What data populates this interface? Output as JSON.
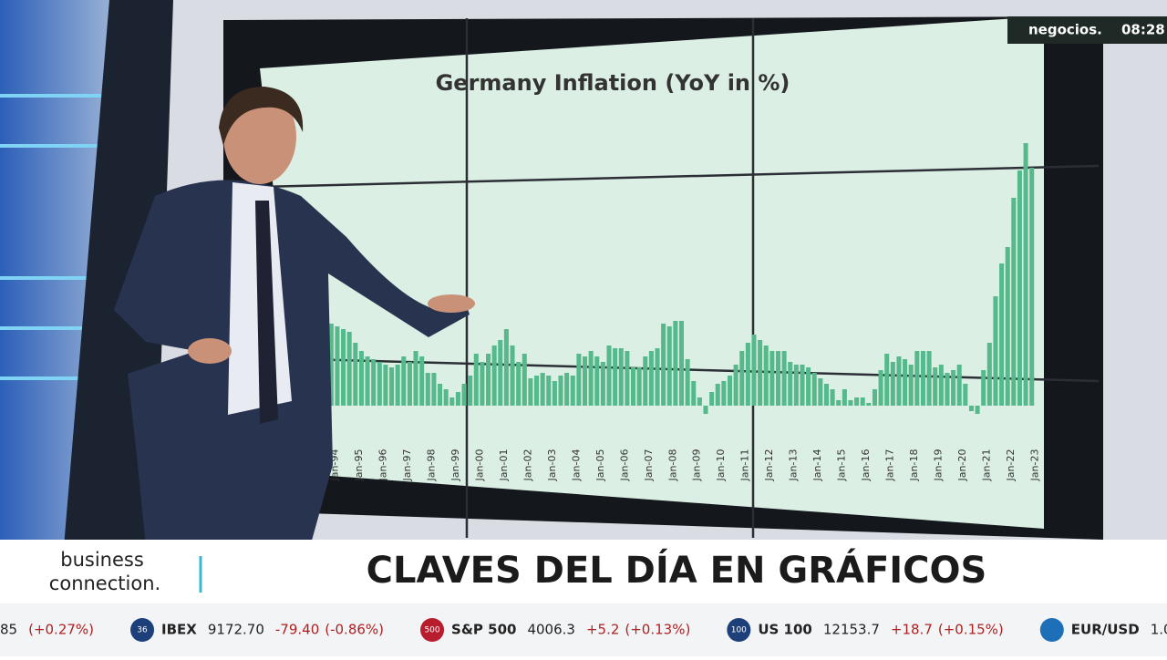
{
  "channel": {
    "name": "negocios.",
    "time": "08:28"
  },
  "chart_data": {
    "type": "bar",
    "title": "Germany Inflation (YoY in %)",
    "color": "#56b98c",
    "categories": [
      "Jan-94",
      null,
      null,
      null,
      "Jan-95",
      null,
      null,
      null,
      "Jan-96",
      null,
      null,
      null,
      "Jan-97",
      null,
      null,
      null,
      "Jan-98",
      null,
      null,
      null,
      "Jan-99",
      null,
      null,
      null,
      "Jan-00",
      null,
      null,
      null,
      "Jan-01",
      null,
      null,
      null,
      "Jan-02",
      null,
      null,
      null,
      "Jan-03",
      null,
      null,
      null,
      "Jan-04",
      null,
      null,
      null,
      "Jan-05",
      null,
      null,
      null,
      "Jan-06",
      null,
      null,
      null,
      "Jan-07",
      null,
      null,
      null,
      "Jan-08",
      null,
      null,
      null,
      "Jan-09",
      null,
      null,
      null,
      "Jan-10",
      null,
      null,
      null,
      "Jan-11",
      null,
      null,
      null,
      "Jan-12",
      null,
      null,
      null,
      "Jan-13",
      null,
      null,
      null,
      "Jan-14",
      null,
      null,
      null,
      "Jan-15",
      null,
      null,
      null,
      "Jan-16",
      null,
      null,
      null,
      "Jan-17",
      null,
      null,
      null,
      "Jan-18",
      null,
      null,
      null,
      "Jan-19",
      null,
      null,
      null,
      "Jan-20",
      null,
      null,
      null,
      "Jan-21",
      null,
      null,
      null,
      "Jan-22",
      null,
      null,
      null,
      "Jan-23"
    ],
    "values": [
      3.0,
      2.9,
      2.8,
      2.7,
      2.3,
      2.0,
      1.8,
      1.7,
      1.6,
      1.5,
      1.4,
      1.5,
      1.8,
      1.6,
      2.0,
      1.8,
      1.2,
      1.2,
      0.8,
      0.6,
      0.3,
      0.5,
      0.8,
      1.1,
      1.9,
      1.6,
      1.9,
      2.2,
      2.4,
      2.8,
      2.2,
      1.6,
      1.9,
      1.0,
      1.1,
      1.2,
      1.1,
      0.9,
      1.1,
      1.2,
      1.1,
      1.9,
      1.8,
      2.0,
      1.8,
      1.6,
      2.2,
      2.1,
      2.1,
      2.0,
      1.4,
      1.4,
      1.8,
      2.0,
      2.1,
      3.0,
      2.9,
      3.1,
      3.1,
      1.7,
      0.9,
      0.3,
      -0.3,
      0.5,
      0.8,
      0.9,
      1.1,
      1.5,
      2.0,
      2.3,
      2.6,
      2.4,
      2.2,
      2.0,
      2.0,
      2.0,
      1.6,
      1.5,
      1.5,
      1.4,
      1.2,
      1.0,
      0.8,
      0.6,
      0.2,
      0.6,
      0.2,
      0.3,
      0.3,
      0.1,
      0.6,
      1.3,
      1.9,
      1.6,
      1.8,
      1.7,
      1.5,
      2.0,
      2.0,
      2.0,
      1.4,
      1.5,
      1.2,
      1.3,
      1.5,
      0.8,
      -0.2,
      -0.3,
      1.3,
      2.3,
      4.0,
      5.2,
      5.8,
      7.6,
      8.6,
      9.6,
      8.7
    ],
    "ylim": [
      -1,
      10
    ]
  },
  "lower_third": {
    "brand_line1": "business",
    "brand_line2": "connection.",
    "headline": "CLAVES DEL DÍA EN GRÁFICOS"
  },
  "ticker": [
    {
      "badge": null,
      "name": null,
      "price": "85",
      "change": null,
      "pct": "(+0.27%)"
    },
    {
      "badge": "36",
      "name": "IBEX",
      "price": "9172.70",
      "change": "-79.40",
      "pct": "(-0.86%)"
    },
    {
      "badge": "500",
      "name": "S&P 500",
      "price": "4006.3",
      "change": "+5.2",
      "pct": "(+0.13%)"
    },
    {
      "badge": "100",
      "name": "US 100",
      "price": "12153.7",
      "change": "+18.7",
      "pct": "(+0.15%)"
    },
    {
      "badge": null,
      "name": "EUR/USD",
      "price": "1.0",
      "change": null,
      "pct": null
    }
  ]
}
